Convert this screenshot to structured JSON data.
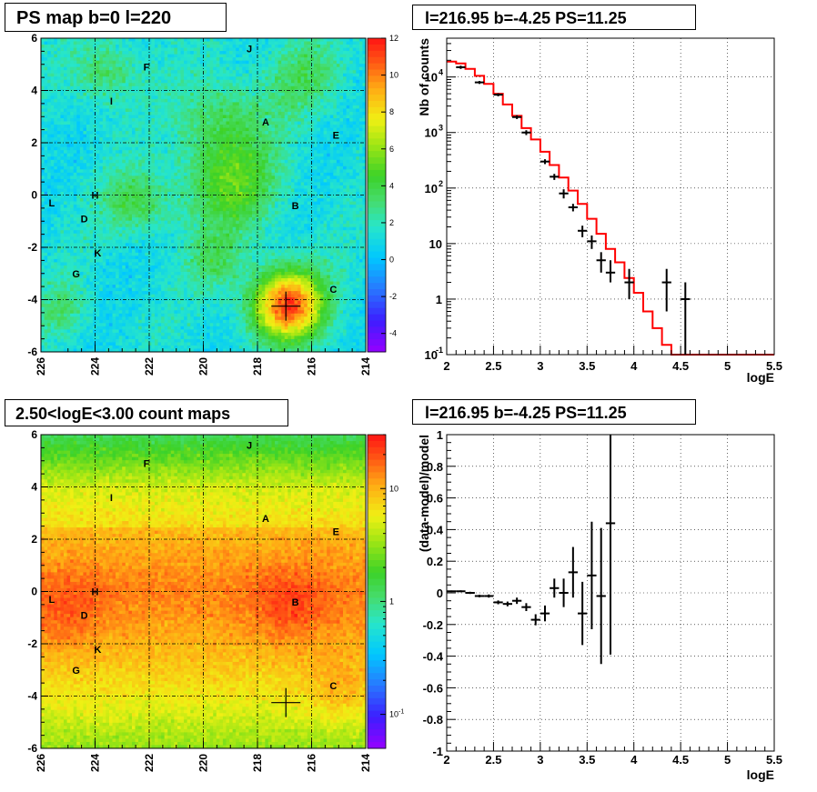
{
  "titles": {
    "map_ps": "PS map b=0 l=220",
    "spectrum": "l=216.95 b=-4.25 PS=11.25",
    "map_counts": "2.50<logE<3.00 count maps",
    "residual": "l=216.95 b=-4.25 PS=11.25"
  },
  "source_labels": [
    "A",
    "B",
    "C",
    "D",
    "E",
    "F",
    "G",
    "H",
    "I",
    "J",
    "K",
    "L"
  ],
  "sources": [
    {
      "name": "J",
      "l": 218.3,
      "b": 5.6
    },
    {
      "name": "F",
      "l": 222.1,
      "b": 4.9
    },
    {
      "name": "I",
      "l": 223.4,
      "b": 3.6
    },
    {
      "name": "A",
      "l": 217.7,
      "b": 2.8
    },
    {
      "name": "E",
      "l": 215.1,
      "b": 2.3
    },
    {
      "name": "H",
      "l": 224.0,
      "b": 0.0
    },
    {
      "name": "B",
      "l": 216.6,
      "b": -0.4
    },
    {
      "name": "L",
      "l": 225.6,
      "b": -0.3
    },
    {
      "name": "D",
      "l": 224.4,
      "b": -0.9
    },
    {
      "name": "K",
      "l": 223.9,
      "b": -2.2
    },
    {
      "name": "G",
      "l": 224.7,
      "b": -3.0
    },
    {
      "name": "C",
      "l": 215.2,
      "b": -3.6
    }
  ],
  "marker": {
    "l": 216.95,
    "b": -4.25
  },
  "map_axes": {
    "l_range": [
      226,
      214
    ],
    "b_range": [
      -6,
      6
    ],
    "l_ticks": [
      "226",
      "224",
      "222",
      "220",
      "218",
      "216",
      "214"
    ],
    "b_ticks": [
      "6",
      "4",
      "2",
      "0",
      "-2",
      "-4",
      "-6"
    ]
  },
  "ps_scale": {
    "range": [
      -5,
      12
    ],
    "ticks": [
      "12",
      "10",
      "8",
      "6",
      "4",
      "2",
      "0",
      "-2",
      "-4"
    ]
  },
  "counts_scale": {
    "log": true,
    "range": [
      0.05,
      30
    ],
    "ticks": [
      "10",
      "1",
      "10"
    ],
    "tick_exponents": [
      "",
      "",
      "-1"
    ]
  },
  "spectrum_axes": {
    "xlabel": "logE",
    "ylabel": "Nb of counts",
    "xlim": [
      2,
      5.5
    ],
    "ylim": [
      0.1,
      50000
    ],
    "log_y": true,
    "x_ticks": [
      "2",
      "2.5",
      "3",
      "3.5",
      "4",
      "4.5",
      "5",
      "5.5"
    ],
    "y_ticks": [
      {
        "base": "10",
        "exp": "-1",
        "value": 0.1
      },
      {
        "base": "1",
        "exp": "",
        "value": 1
      },
      {
        "base": "10",
        "exp": "",
        "value": 10
      },
      {
        "base": "10",
        "exp": "2",
        "value": 100
      },
      {
        "base": "10",
        "exp": "3",
        "value": 1000
      },
      {
        "base": "10",
        "exp": "4",
        "value": 10000
      }
    ],
    "grid": true
  },
  "residual_axes": {
    "xlabel": "logE",
    "ylabel": "(data-model)/model",
    "xlim": [
      2,
      5.5
    ],
    "ylim": [
      -1,
      1
    ],
    "x_ticks": [
      "2",
      "2.5",
      "3",
      "3.5",
      "4",
      "4.5",
      "5",
      "5.5"
    ],
    "y_ticks": [
      "1",
      "0.8",
      "0.6",
      "0.4",
      "0.2",
      "0",
      "-0.2",
      "-0.4",
      "-0.6",
      "-0.8",
      "-1"
    ],
    "grid": true
  },
  "chart_data": [
    {
      "type": "heatmap",
      "title": "PS map b=0 l=220",
      "xlabel": "",
      "ylabel": "",
      "xlim": [
        226,
        214
      ],
      "ylim": [
        -6,
        6
      ],
      "zlim": [
        -5,
        12
      ]
    },
    {
      "type": "line",
      "title": "l=216.95 b=-4.25 PS=11.25",
      "xlabel": "logE",
      "ylabel": "Nb of counts",
      "xlim": [
        2,
        5.5
      ],
      "ylim": [
        0.1,
        50000
      ],
      "log_y": true,
      "model_edges": [
        2.0,
        2.1,
        2.2,
        2.3,
        2.4,
        2.5,
        2.6,
        2.7,
        2.8,
        2.9,
        3.0,
        3.1,
        3.2,
        3.3,
        3.4,
        3.5,
        3.6,
        3.7,
        3.8,
        3.9,
        4.0,
        4.1,
        4.2,
        4.3,
        4.4,
        4.5,
        4.6,
        4.7,
        4.8,
        4.9,
        5.0,
        5.1,
        5.2,
        5.3,
        5.4,
        5.5
      ],
      "model_values": [
        19000,
        17500,
        14000,
        10500,
        7500,
        5000,
        3200,
        2000,
        1200,
        750,
        450,
        260,
        155,
        90,
        52,
        28,
        15,
        8,
        4.6,
        2.4,
        1.3,
        0.6,
        0.3,
        0.15,
        0.1,
        0.1,
        0.1,
        0.1,
        0.1,
        0.1,
        0.1,
        0.1,
        0.1,
        0.1,
        0.1
      ],
      "data_points": [
        {
          "x": 2.15,
          "y": 15000,
          "err_lo": 14000,
          "err_hi": 16000
        },
        {
          "x": 2.35,
          "y": 8000,
          "err_lo": 7500,
          "err_hi": 8500
        },
        {
          "x": 2.55,
          "y": 4800,
          "err_lo": 4500,
          "err_hi": 5100
        },
        {
          "x": 2.75,
          "y": 1900,
          "err_lo": 1750,
          "err_hi": 2050
        },
        {
          "x": 2.85,
          "y": 1000,
          "err_lo": 900,
          "err_hi": 1100
        },
        {
          "x": 3.05,
          "y": 300,
          "err_lo": 270,
          "err_hi": 330
        },
        {
          "x": 3.15,
          "y": 160,
          "err_lo": 140,
          "err_hi": 180
        },
        {
          "x": 3.25,
          "y": 80,
          "err_lo": 65,
          "err_hi": 95
        },
        {
          "x": 3.35,
          "y": 45,
          "err_lo": 38,
          "err_hi": 52
        },
        {
          "x": 3.45,
          "y": 17,
          "err_lo": 13,
          "err_hi": 21
        },
        {
          "x": 3.55,
          "y": 11,
          "err_lo": 8,
          "err_hi": 14
        },
        {
          "x": 3.65,
          "y": 5,
          "err_lo": 3,
          "err_hi": 7
        },
        {
          "x": 3.75,
          "y": 3,
          "err_lo": 2,
          "err_hi": 5
        },
        {
          "x": 3.95,
          "y": 2,
          "err_lo": 1,
          "err_hi": 3.5
        },
        {
          "x": 4.35,
          "y": 2,
          "err_lo": 0.6,
          "err_hi": 3.5
        },
        {
          "x": 4.55,
          "y": 1,
          "err_lo": 0.1,
          "err_hi": 2
        }
      ]
    },
    {
      "type": "heatmap",
      "title": "2.50<logE<3.00 count maps",
      "xlabel": "",
      "ylabel": "",
      "xlim": [
        226,
        214
      ],
      "ylim": [
        -6,
        6
      ],
      "log_z": true
    },
    {
      "type": "scatter",
      "title": "l=216.95 b=-4.25 PS=11.25",
      "xlabel": "logE",
      "ylabel": "(data-model)/model",
      "xlim": [
        2,
        5.5
      ],
      "ylim": [
        -1,
        1
      ],
      "points": [
        {
          "x": 2.05,
          "y": 0.01,
          "err": 0.005
        },
        {
          "x": 2.15,
          "y": 0.01,
          "err": 0.006
        },
        {
          "x": 2.25,
          "y": 0.0,
          "err": 0.007
        },
        {
          "x": 2.35,
          "y": -0.02,
          "err": 0.008
        },
        {
          "x": 2.45,
          "y": -0.02,
          "err": 0.01
        },
        {
          "x": 2.55,
          "y": -0.06,
          "err": 0.012
        },
        {
          "x": 2.65,
          "y": -0.07,
          "err": 0.015
        },
        {
          "x": 2.75,
          "y": -0.05,
          "err": 0.02
        },
        {
          "x": 2.85,
          "y": -0.09,
          "err": 0.025
        },
        {
          "x": 2.95,
          "y": -0.17,
          "err": 0.035
        },
        {
          "x": 3.05,
          "y": -0.13,
          "err": 0.05
        },
        {
          "x": 3.15,
          "y": 0.03,
          "err": 0.06
        },
        {
          "x": 3.25,
          "y": 0.0,
          "err": 0.09
        },
        {
          "x": 3.35,
          "y": 0.13,
          "err": 0.16
        },
        {
          "x": 3.45,
          "y": -0.13,
          "err": 0.2
        },
        {
          "x": 3.55,
          "y": 0.11,
          "err": 0.34
        },
        {
          "x": 3.65,
          "y": -0.02,
          "err": 0.43
        },
        {
          "x": 3.75,
          "y": 0.44,
          "err": 0.83
        }
      ]
    }
  ]
}
